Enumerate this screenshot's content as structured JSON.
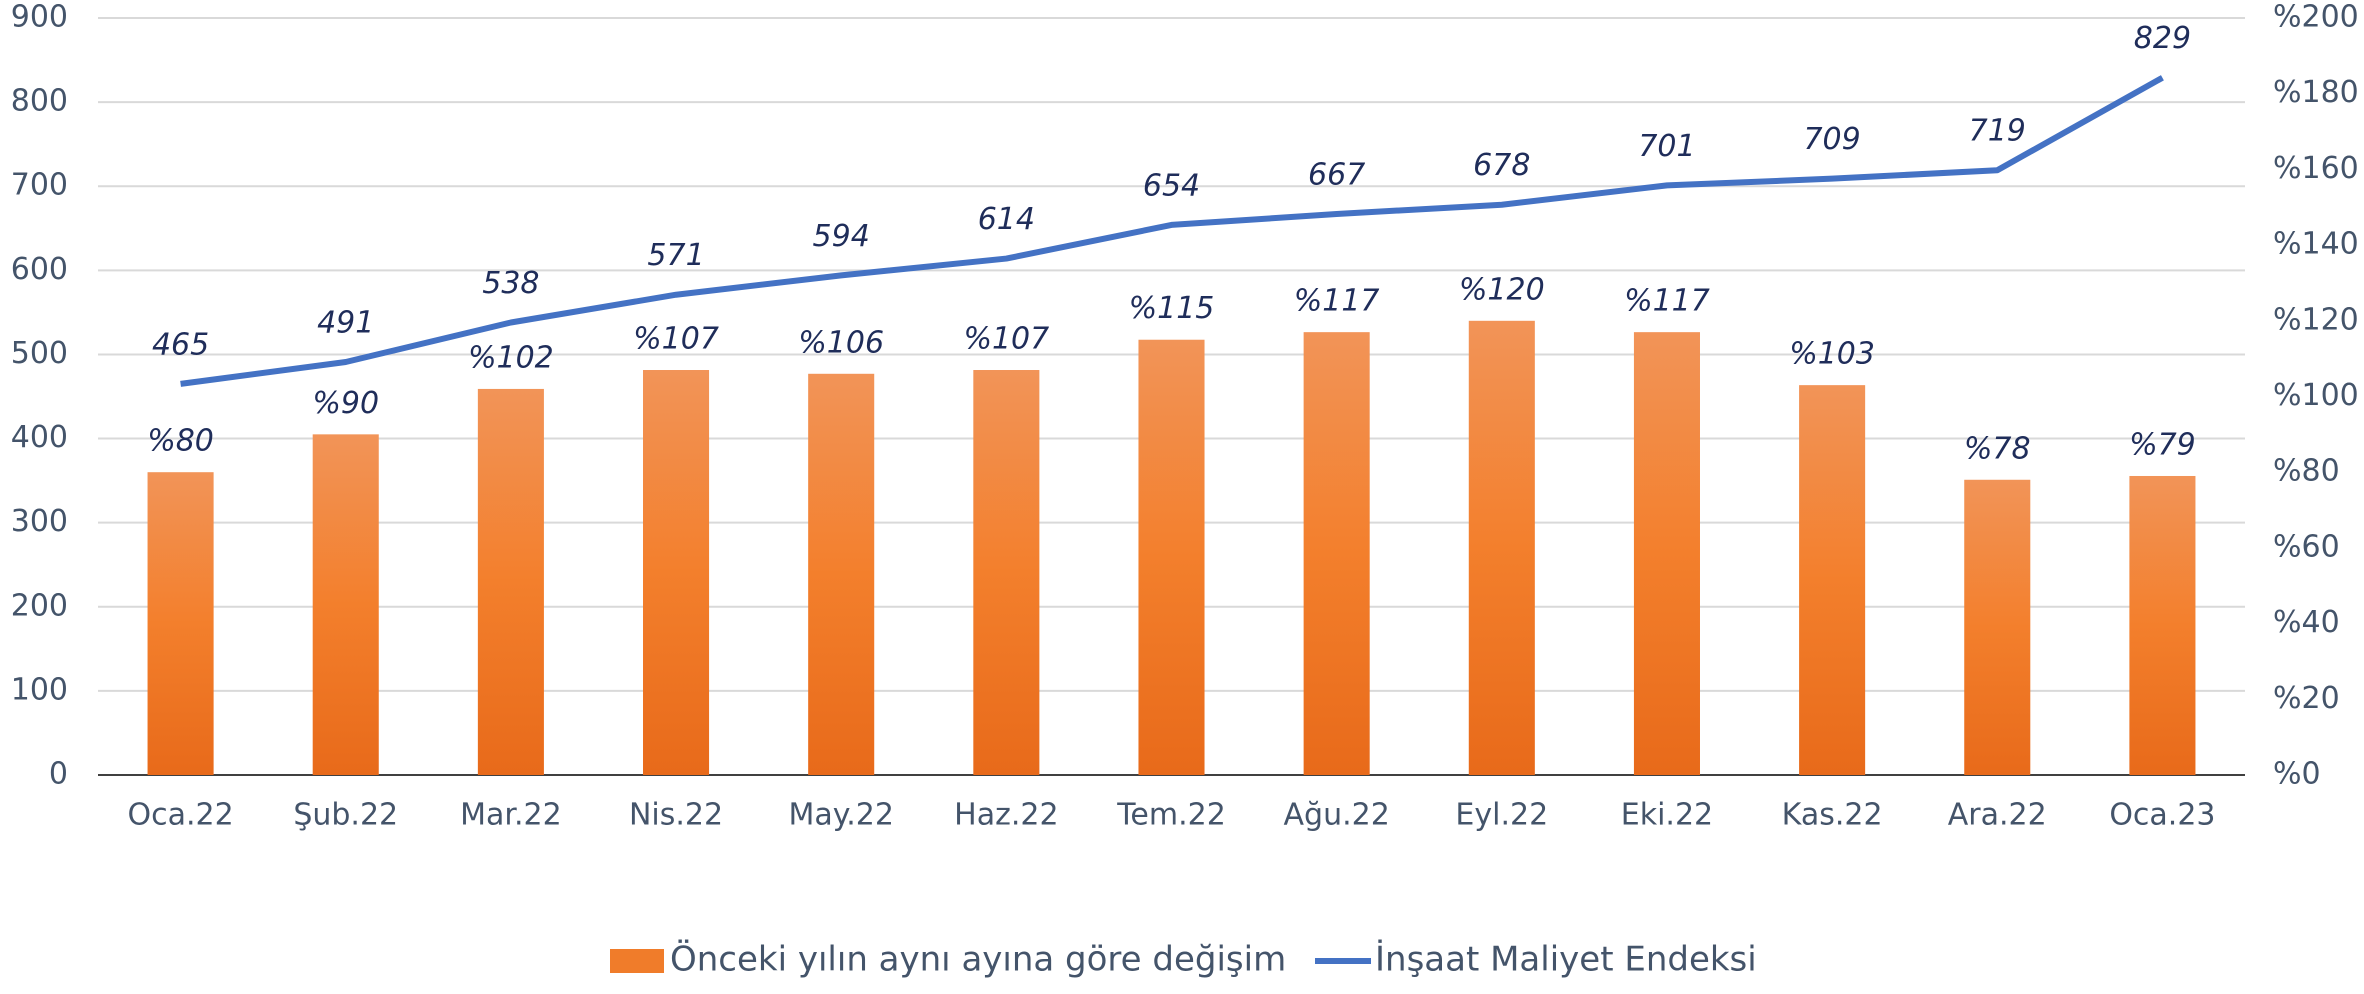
{
  "chart_data": {
    "type": "bar",
    "categories": [
      "Oca.22",
      "Şub.22",
      "Mar.22",
      "Nis.22",
      "May.22",
      "Haz.22",
      "Tem.22",
      "Ağu.22",
      "Eyl.22",
      "Eki.22",
      "Kas.22",
      "Ara.22",
      "Oca.23"
    ],
    "series": [
      {
        "name": "Önceki yılın aynı ayına göre değişim",
        "type": "bar",
        "axis": "y2",
        "color": "#f07c2a",
        "values": [
          80,
          90,
          102,
          107,
          106,
          107,
          115,
          117,
          120,
          117,
          103,
          78,
          79
        ],
        "value_labels": [
          "%80",
          "%90",
          "%102",
          "%107",
          "%106",
          "%107",
          "%115",
          "%117",
          "%120",
          "%117",
          "%103",
          "%78",
          "%79"
        ]
      },
      {
        "name": "İnşaat Maliyet Endeksi",
        "type": "line",
        "color": "#4472c4",
        "values": [
          465,
          491,
          538,
          571,
          594,
          614,
          654,
          667,
          678,
          701,
          709,
          719,
          829
        ]
      }
    ],
    "ylim": [
      0,
      900
    ],
    "yticks": [
      0,
      100,
      200,
      300,
      400,
      500,
      600,
      700,
      800,
      900
    ],
    "y2lim": [
      0,
      200
    ],
    "y2ticks": [
      {
        "value": 0,
        "label": "%0"
      },
      {
        "value": 20,
        "label": "%20"
      },
      {
        "value": 40,
        "label": "%40"
      },
      {
        "value": 60,
        "label": "%60"
      },
      {
        "value": 80,
        "label": "%80"
      },
      {
        "value": 100,
        "label": "%100"
      },
      {
        "value": 120,
        "label": "%120"
      },
      {
        "value": 140,
        "label": "%140"
      },
      {
        "value": 160,
        "label": "%160"
      },
      {
        "value": 180,
        "label": "%180"
      },
      {
        "value": 200,
        "label": "%200"
      }
    ],
    "grid": true,
    "legend": "bottom"
  }
}
